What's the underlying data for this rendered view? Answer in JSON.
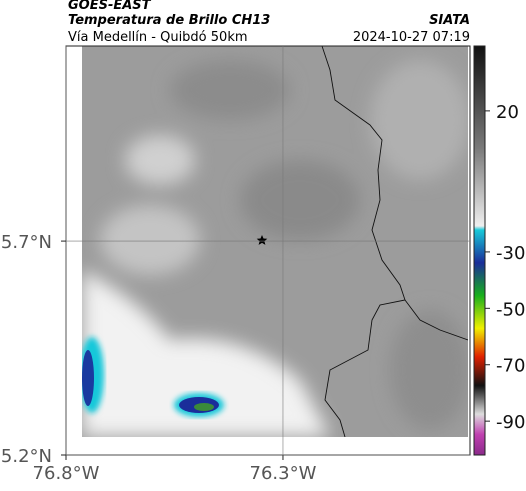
{
  "header": {
    "source": "GOES-EAST",
    "title": "Temperatura de Brillo CH13",
    "brand": "SIATA",
    "subtitle": "Vía Medellín - Quibdó 50km",
    "timestamp": "2024-10-27 07:19"
  },
  "map": {
    "lonlim": [
      -76.8,
      -75.869
    ],
    "latlim": [
      5.2,
      6.156
    ],
    "xticks": [
      {
        "value": -76.8,
        "label": "76.8°W"
      },
      {
        "value": -76.3,
        "label": "76.3°W"
      }
    ],
    "yticks": [
      {
        "value": 5.2,
        "label": "5.2°N"
      },
      {
        "value": 5.7,
        "label": "5.7°N"
      }
    ],
    "grid": true
  },
  "colorbar": {
    "lim": [
      -102,
      43
    ],
    "ticks": [
      20,
      -30,
      -50,
      -70,
      -90
    ]
  }
}
